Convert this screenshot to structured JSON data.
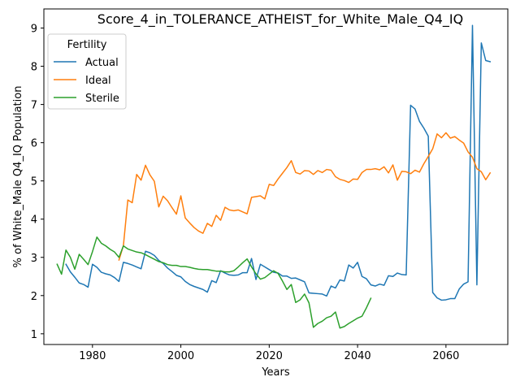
{
  "chart_data": {
    "type": "line",
    "title": "Score_4_in_TOLERANCE_ATHEIST_for_White_Male_Q4_IQ",
    "xlabel": "Years",
    "ylabel": "% of White_Male Q4_IQ Population",
    "xlim": [
      1969,
      2074
    ],
    "ylim": [
      0.72,
      9.5
    ],
    "xticks": [
      1980,
      2000,
      2020,
      2040,
      2060
    ],
    "yticks": [
      1,
      2,
      3,
      4,
      5,
      6,
      7,
      8,
      9
    ],
    "grid": false,
    "legend": {
      "title": "Fertility",
      "position": "top-left"
    },
    "series": [
      {
        "name": "Actual",
        "color": "#1f77b4",
        "x": [
          1974,
          1975,
          1976,
          1977,
          1978,
          1979,
          1980,
          1981,
          1982,
          1983,
          1984,
          1985,
          1986,
          1987,
          1988,
          1989,
          1990,
          1991,
          1992,
          1993,
          1994,
          1995,
          1996,
          1997,
          1998,
          1999,
          2000,
          2001,
          2002,
          2003,
          2004,
          2005,
          2006,
          2007,
          2008,
          2009,
          2010,
          2011,
          2012,
          2013,
          2014,
          2015,
          2016,
          2017,
          2018,
          2019,
          2020,
          2021,
          2022,
          2023,
          2024,
          2025,
          2026,
          2027,
          2028,
          2029,
          2030,
          2031,
          2032,
          2033,
          2034,
          2035,
          2036,
          2037,
          2038,
          2039,
          2040,
          2041,
          2042,
          2043,
          2044,
          2045,
          2046,
          2047,
          2048,
          2049,
          2050,
          2051,
          2052,
          2053,
          2054,
          2055,
          2056,
          2057,
          2058,
          2059,
          2060,
          2061,
          2062,
          2063,
          2064,
          2065,
          2066,
          2067,
          2068,
          2069,
          2070
        ],
        "values": [
          2.82,
          2.62,
          2.48,
          2.33,
          2.29,
          2.22,
          2.82,
          2.74,
          2.61,
          2.57,
          2.54,
          2.47,
          2.37,
          2.87,
          2.84,
          2.8,
          2.75,
          2.7,
          3.16,
          3.12,
          3.05,
          2.92,
          2.84,
          2.72,
          2.63,
          2.53,
          2.49,
          2.37,
          2.29,
          2.24,
          2.2,
          2.16,
          2.09,
          2.39,
          2.34,
          2.65,
          2.59,
          2.54,
          2.53,
          2.54,
          2.6,
          2.6,
          2.97,
          2.42,
          2.82,
          2.75,
          2.68,
          2.61,
          2.59,
          2.51,
          2.51,
          2.45,
          2.46,
          2.41,
          2.36,
          2.07,
          2.06,
          2.05,
          2.04,
          1.99,
          2.25,
          2.2,
          2.41,
          2.38,
          2.8,
          2.72,
          2.87,
          2.5,
          2.44,
          2.28,
          2.25,
          2.3,
          2.27,
          2.52,
          2.5,
          2.59,
          2.55,
          2.54,
          6.98,
          6.88,
          6.56,
          6.38,
          6.17,
          2.08,
          1.94,
          1.88,
          1.89,
          1.92,
          1.92,
          2.17,
          2.3,
          2.36,
          9.07,
          2.28,
          8.61,
          8.15,
          8.12
        ]
      },
      {
        "name": "Ideal",
        "color": "#ff7f0e",
        "x": [
          1986,
          1987,
          1988,
          1989,
          1990,
          1991,
          1992,
          1993,
          1994,
          1995,
          1996,
          1997,
          1998,
          1999,
          2000,
          2001,
          2002,
          2003,
          2004,
          2005,
          2006,
          2007,
          2008,
          2009,
          2010,
          2011,
          2012,
          2013,
          2014,
          2015,
          2016,
          2017,
          2018,
          2019,
          2020,
          2021,
          2022,
          2023,
          2024,
          2025,
          2026,
          2027,
          2028,
          2029,
          2030,
          2031,
          2032,
          2033,
          2034,
          2035,
          2036,
          2037,
          2038,
          2039,
          2040,
          2041,
          2042,
          2043,
          2044,
          2045,
          2046,
          2047,
          2048,
          2049,
          2050,
          2051,
          2052,
          2053,
          2054,
          2055,
          2056,
          2057,
          2058,
          2059,
          2060,
          2061,
          2062,
          2063,
          2064,
          2065,
          2066,
          2067,
          2068,
          2069,
          2070
        ],
        "values": [
          2.93,
          3.31,
          4.5,
          4.43,
          5.17,
          5.02,
          5.41,
          5.16,
          4.99,
          4.32,
          4.6,
          4.48,
          4.3,
          4.13,
          4.61,
          4.03,
          3.9,
          3.78,
          3.69,
          3.63,
          3.89,
          3.81,
          4.1,
          3.97,
          4.31,
          4.24,
          4.22,
          4.24,
          4.19,
          4.14,
          4.57,
          4.59,
          4.61,
          4.53,
          4.91,
          4.88,
          5.05,
          5.2,
          5.35,
          5.53,
          5.22,
          5.18,
          5.27,
          5.26,
          5.17,
          5.27,
          5.22,
          5.3,
          5.28,
          5.11,
          5.04,
          5.01,
          4.96,
          5.05,
          5.04,
          5.22,
          5.3,
          5.3,
          5.32,
          5.29,
          5.37,
          5.21,
          5.42,
          5.02,
          5.25,
          5.24,
          5.19,
          5.28,
          5.23,
          5.45,
          5.64,
          5.84,
          6.23,
          6.13,
          6.26,
          6.12,
          6.16,
          6.07,
          5.99,
          5.76,
          5.62,
          5.32,
          5.24,
          5.03,
          5.21
        ]
      },
      {
        "name": "Sterile",
        "color": "#2ca02c",
        "x": [
          1972,
          1973,
          1974,
          1975,
          1976,
          1977,
          1978,
          1979,
          1980,
          1981,
          1982,
          1983,
          1984,
          1985,
          1986,
          1987,
          1988,
          1989,
          1990,
          1991,
          1992,
          1993,
          1994,
          1995,
          1996,
          1997,
          1998,
          1999,
          2000,
          2001,
          2002,
          2003,
          2004,
          2005,
          2006,
          2007,
          2008,
          2009,
          2010,
          2011,
          2012,
          2013,
          2014,
          2015,
          2016,
          2017,
          2018,
          2019,
          2020,
          2021,
          2022,
          2023,
          2024,
          2025,
          2026,
          2027,
          2028,
          2029,
          2030,
          2031,
          2032,
          2033,
          2034,
          2035,
          2036,
          2037,
          2038,
          2039,
          2040,
          2041,
          2042,
          2043
        ],
        "values": [
          2.82,
          2.56,
          3.19,
          3.0,
          2.69,
          3.08,
          2.95,
          2.81,
          3.15,
          3.53,
          3.37,
          3.3,
          3.21,
          3.14,
          3.0,
          3.3,
          3.22,
          3.18,
          3.14,
          3.12,
          3.07,
          3.01,
          2.95,
          2.89,
          2.86,
          2.81,
          2.79,
          2.79,
          2.76,
          2.76,
          2.74,
          2.71,
          2.69,
          2.68,
          2.68,
          2.66,
          2.64,
          2.64,
          2.62,
          2.62,
          2.65,
          2.75,
          2.86,
          2.96,
          2.75,
          2.57,
          2.43,
          2.47,
          2.56,
          2.65,
          2.58,
          2.38,
          2.16,
          2.29,
          1.82,
          1.89,
          2.04,
          1.81,
          1.17,
          1.27,
          1.33,
          1.42,
          1.46,
          1.57,
          1.15,
          1.19,
          1.27,
          1.34,
          1.41,
          1.46,
          1.68,
          1.93
        ]
      }
    ]
  }
}
